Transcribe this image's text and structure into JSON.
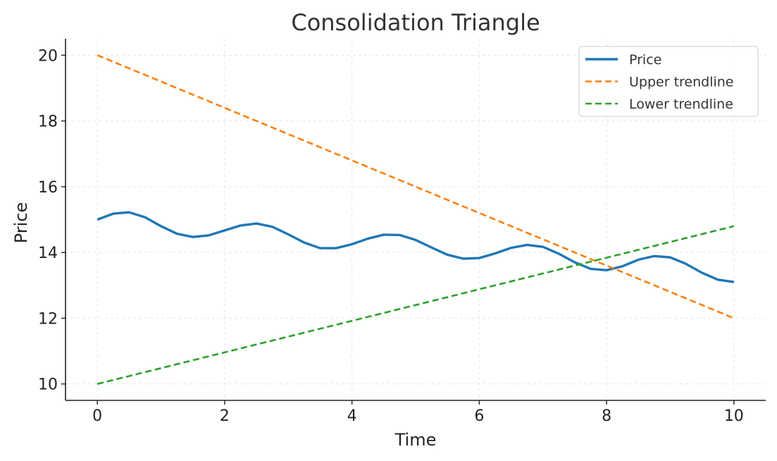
{
  "chart_data": {
    "type": "line",
    "title": "Consolidation Triangle",
    "xlabel": "Time",
    "ylabel": "Price",
    "xlim": [
      -0.5,
      10.5
    ],
    "ylim": [
      9.5,
      20.5
    ],
    "xticks": [
      0,
      2,
      4,
      6,
      8,
      10
    ],
    "yticks": [
      10,
      12,
      14,
      16,
      18,
      20
    ],
    "grid": true,
    "legend_position": "top-right",
    "series": [
      {
        "name": "Price",
        "style": "solid",
        "color": "#1f77b4",
        "x": [
          0,
          0.25,
          0.5,
          0.75,
          1,
          1.25,
          1.5,
          1.75,
          2,
          2.25,
          2.5,
          2.75,
          3,
          3.25,
          3.5,
          3.75,
          4,
          4.25,
          4.5,
          4.75,
          5,
          5.25,
          5.5,
          5.75,
          6,
          6.25,
          6.5,
          6.75,
          7,
          7.25,
          7.5,
          7.75,
          8,
          8.25,
          8.5,
          8.75,
          9,
          9.25,
          9.5,
          9.75,
          10
        ],
        "y": [
          15.0,
          15.18,
          15.22,
          15.07,
          14.8,
          14.57,
          14.47,
          14.52,
          14.67,
          14.82,
          14.88,
          14.78,
          14.55,
          14.3,
          14.13,
          14.13,
          14.25,
          14.42,
          14.54,
          14.53,
          14.38,
          14.15,
          13.93,
          13.81,
          13.83,
          13.97,
          14.14,
          14.23,
          14.17,
          13.96,
          13.7,
          13.5,
          13.46,
          13.58,
          13.78,
          13.89,
          13.85,
          13.65,
          13.38,
          13.17,
          13.1
        ]
      },
      {
        "name": "Upper trendline",
        "style": "dashed",
        "color": "#ff7f0e",
        "x": [
          0,
          10
        ],
        "y": [
          20,
          12
        ]
      },
      {
        "name": "Lower trendline",
        "style": "dashed",
        "color": "#2ca02c",
        "x": [
          0,
          10
        ],
        "y": [
          10,
          14.8
        ]
      }
    ]
  }
}
